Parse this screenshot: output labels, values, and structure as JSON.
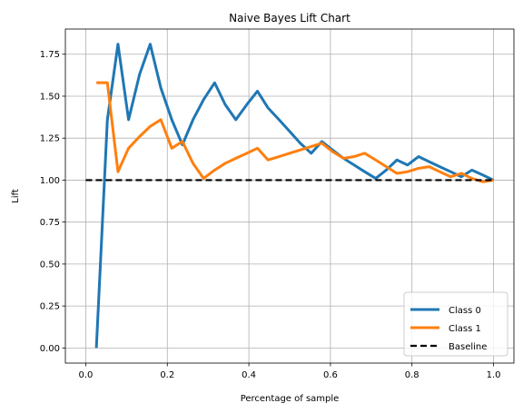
{
  "chart_data": {
    "type": "line",
    "title": "Naive Bayes Lift Chart",
    "xlabel": "Percentage of sample",
    "ylabel": "Lift",
    "xlim": [
      -0.05,
      1.05
    ],
    "ylim": [
      -0.09,
      1.9
    ],
    "xticks": [
      0.0,
      0.2,
      0.4,
      0.6,
      0.8,
      1.0
    ],
    "xtick_labels": [
      "0.0",
      "0.2",
      "0.4",
      "0.6",
      "0.8",
      "1.0"
    ],
    "yticks": [
      0.0,
      0.25,
      0.5,
      0.75,
      1.0,
      1.25,
      1.5,
      1.75
    ],
    "ytick_labels": [
      "0.00",
      "0.25",
      "0.50",
      "0.75",
      "1.00",
      "1.25",
      "1.50",
      "1.75"
    ],
    "grid": true,
    "legend_position": "bottom-right",
    "series": [
      {
        "name": "Class 0",
        "color": "#1f77b4",
        "style": "solid",
        "x": [
          0.026,
          0.053,
          0.079,
          0.105,
          0.132,
          0.158,
          0.184,
          0.211,
          0.237,
          0.263,
          0.289,
          0.316,
          0.342,
          0.368,
          0.395,
          0.421,
          0.447,
          0.474,
          0.5,
          0.526,
          0.553,
          0.579,
          0.605,
          0.632,
          0.658,
          0.684,
          0.711,
          0.737,
          0.763,
          0.789,
          0.816,
          0.842,
          0.868,
          0.895,
          0.921,
          0.947,
          0.974,
          1.0
        ],
        "y": [
          0.0,
          1.36,
          1.81,
          1.36,
          1.63,
          1.81,
          1.55,
          1.36,
          1.21,
          1.36,
          1.48,
          1.58,
          1.45,
          1.36,
          1.45,
          1.53,
          1.43,
          1.36,
          1.29,
          1.22,
          1.16,
          1.23,
          1.18,
          1.13,
          1.09,
          1.05,
          1.01,
          1.06,
          1.12,
          1.09,
          1.14,
          1.11,
          1.08,
          1.05,
          1.02,
          1.06,
          1.03,
          1.0
        ]
      },
      {
        "name": "Class 1",
        "color": "#ff7f0e",
        "style": "solid",
        "x": [
          0.026,
          0.053,
          0.079,
          0.105,
          0.132,
          0.158,
          0.184,
          0.211,
          0.237,
          0.263,
          0.289,
          0.316,
          0.342,
          0.368,
          0.395,
          0.421,
          0.447,
          0.474,
          0.5,
          0.526,
          0.553,
          0.579,
          0.605,
          0.632,
          0.658,
          0.684,
          0.711,
          0.737,
          0.763,
          0.789,
          0.816,
          0.842,
          0.868,
          0.895,
          0.921,
          0.947,
          0.974,
          1.0
        ],
        "y": [
          1.58,
          1.58,
          1.05,
          1.19,
          1.26,
          1.32,
          1.36,
          1.19,
          1.23,
          1.1,
          1.01,
          1.06,
          1.1,
          1.13,
          1.16,
          1.19,
          1.12,
          1.14,
          1.16,
          1.18,
          1.2,
          1.22,
          1.17,
          1.13,
          1.14,
          1.16,
          1.12,
          1.08,
          1.04,
          1.05,
          1.07,
          1.08,
          1.05,
          1.02,
          1.04,
          1.01,
          0.99,
          1.0
        ]
      },
      {
        "name": "Baseline",
        "color": "#000000",
        "style": "dashed",
        "x": [
          0.0,
          1.0
        ],
        "y": [
          1.0,
          1.0
        ]
      }
    ]
  }
}
